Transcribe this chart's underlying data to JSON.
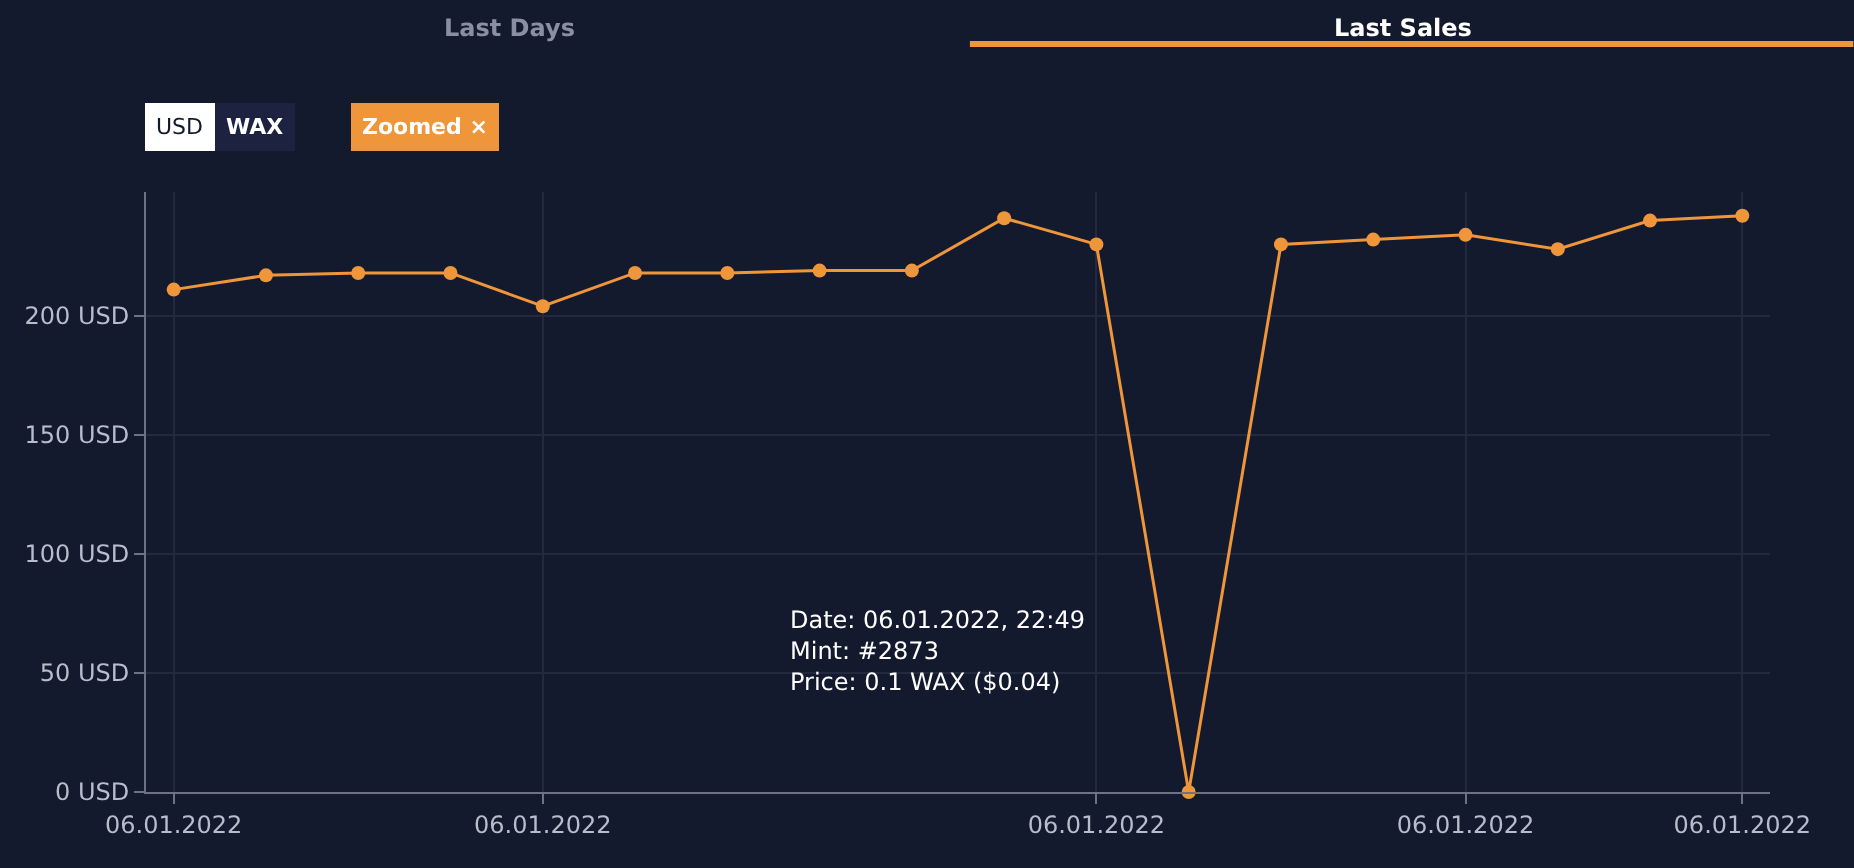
{
  "chart_data": {
    "type": "line",
    "categories": [
      "06.01.2022",
      null,
      null,
      null,
      "06.01.2022",
      null,
      null,
      null,
      null,
      null,
      "06.01.2022",
      null,
      null,
      null,
      "06.01.2022",
      null,
      null,
      "06.01.2022"
    ],
    "series": [
      {
        "color": "#f0963a",
        "values": [
          211,
          217,
          218,
          218,
          204,
          218,
          218,
          219,
          219,
          241,
          230,
          0,
          230,
          232,
          234,
          228,
          240,
          242
        ]
      }
    ],
    "ylim": [
      0,
      252
    ],
    "yticks": [
      {
        "value": 0,
        "label": "0 USD"
      },
      {
        "value": 50,
        "label": "50 USD"
      },
      {
        "value": 100,
        "label": "100 USD"
      },
      {
        "value": 150,
        "label": "150 USD"
      },
      {
        "value": 200,
        "label": "200 USD"
      }
    ],
    "grid": true,
    "marker": "circle",
    "line_style": "solid",
    "annotations": [
      "Last Days",
      "Last Sales",
      "USD",
      "WAX",
      "Zoomed ×",
      "Date: 06.01.2022, 22:49\nMint: #2873\nPrice: 0.1 WAX ($0.04)"
    ]
  }
}
